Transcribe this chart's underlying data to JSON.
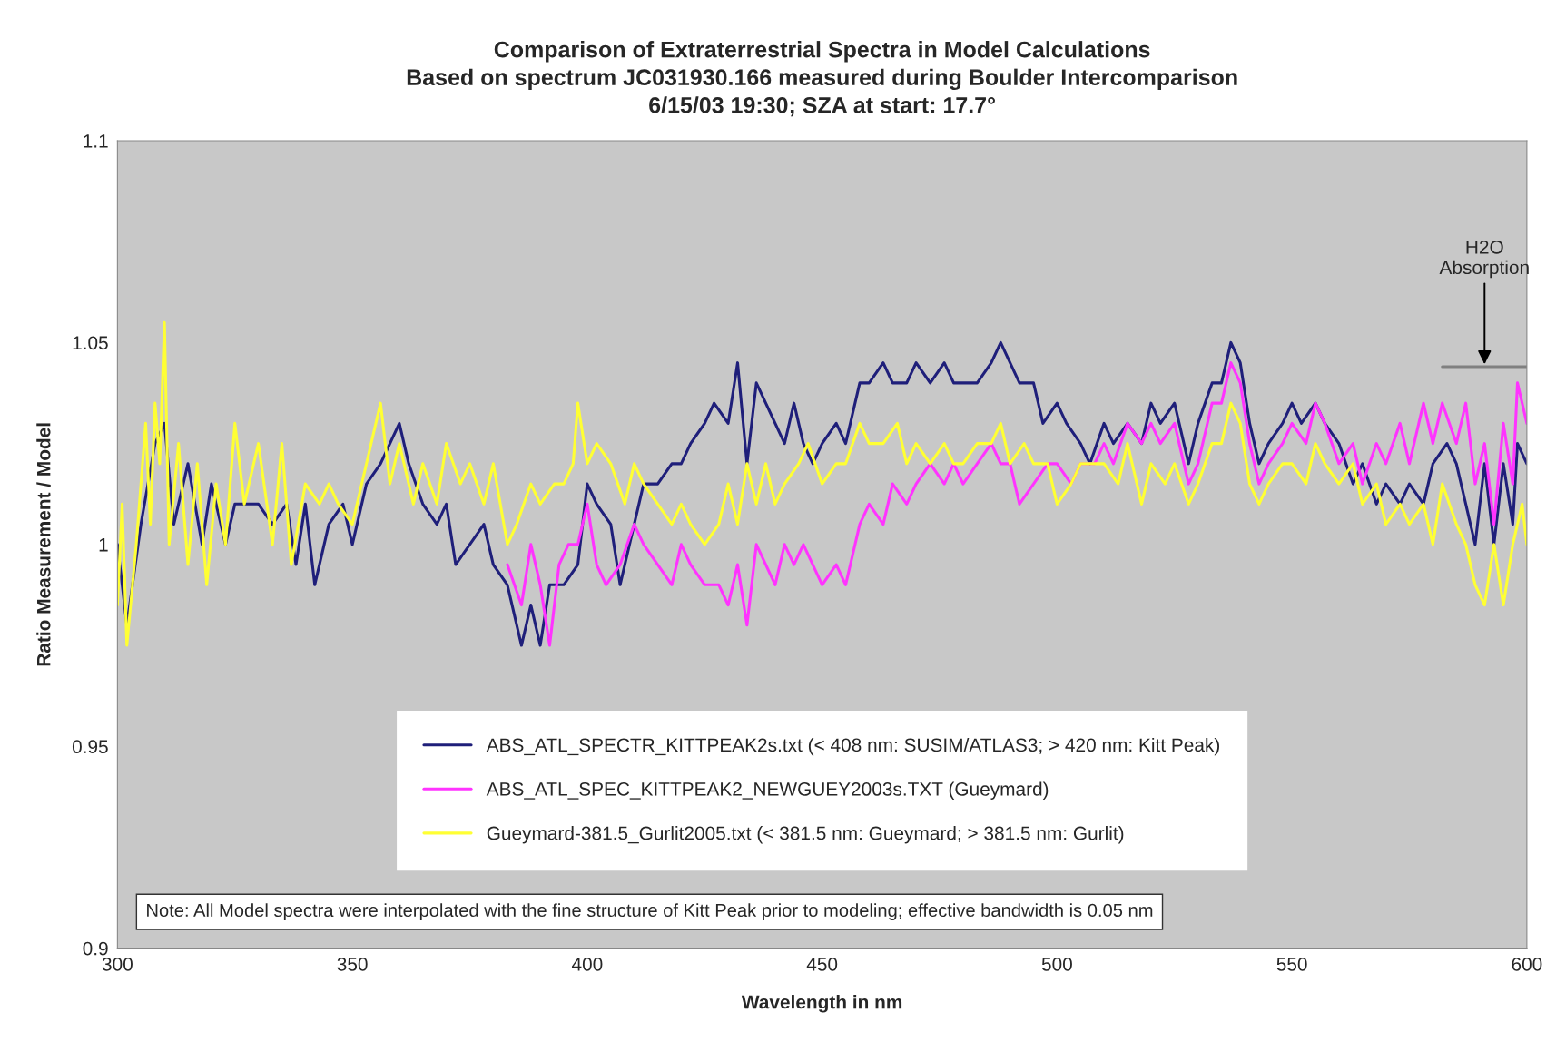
{
  "chart_data": {
    "type": "line",
    "title": "Comparison of Extraterrestrial Spectra in Model Calculations\nBased on spectrum JC031930.166 measured during Boulder Intercomparison\n6/15/03 19:30; SZA at start: 17.7°",
    "xlabel": "Wavelength in nm",
    "ylabel": "Ratio Measurement / Model",
    "xlim": [
      300,
      600
    ],
    "xticks": [
      300,
      350,
      400,
      450,
      500,
      550,
      600
    ],
    "ylim": [
      0.9,
      1.1
    ],
    "yticks": [
      0.9,
      0.95,
      1,
      1.05,
      1.1
    ],
    "legend": "bottom",
    "annotations": [
      {
        "text": "H2O\nAbsorption",
        "x": 591,
        "y": 1.044
      },
      "Note: All Model spectra were interpolated with the fine structure of Kitt Peak prior to modeling; effective bandwidth is 0.05 nm"
    ],
    "series": [
      {
        "name": "ABS_ATL_SPECTR_KITTPEAK2s.txt (< 408 nm: SUSIM/ATLAS3; > 420 nm: Kitt Peak)",
        "color": "#1f1f7a",
        "x": [
          300,
          302,
          305,
          308,
          310,
          312,
          315,
          318,
          320,
          323,
          325,
          330,
          333,
          336,
          338,
          340,
          342,
          345,
          348,
          350,
          353,
          356,
          358,
          360,
          362,
          365,
          368,
          370,
          372,
          375,
          378,
          380,
          383,
          386,
          388,
          390,
          392,
          395,
          398,
          400,
          402,
          405,
          407,
          410,
          412,
          415,
          418,
          420,
          422,
          425,
          427,
          430,
          432,
          434,
          436,
          438,
          440,
          442,
          444,
          446,
          448,
          450,
          453,
          455,
          458,
          460,
          463,
          465,
          468,
          470,
          473,
          476,
          478,
          480,
          483,
          486,
          488,
          490,
          492,
          495,
          497,
          500,
          502,
          505,
          507,
          510,
          512,
          515,
          518,
          520,
          522,
          525,
          528,
          530,
          533,
          535,
          537,
          539,
          541,
          543,
          545,
          548,
          550,
          552,
          555,
          557,
          560,
          563,
          565,
          568,
          570,
          573,
          575,
          578,
          580,
          583,
          585,
          587,
          589,
          591,
          593,
          595,
          597,
          598,
          600
        ],
        "values": [
          1.0,
          0.98,
          1.005,
          1.025,
          1.03,
          1.005,
          1.02,
          1.0,
          1.015,
          1.0,
          1.01,
          1.01,
          1.005,
          1.01,
          0.995,
          1.01,
          0.99,
          1.005,
          1.01,
          1.0,
          1.015,
          1.02,
          1.025,
          1.03,
          1.02,
          1.01,
          1.005,
          1.01,
          0.995,
          1.0,
          1.005,
          0.995,
          0.99,
          0.975,
          0.985,
          0.975,
          0.99,
          0.99,
          0.995,
          1.015,
          1.01,
          1.005,
          0.99,
          1.005,
          1.015,
          1.015,
          1.02,
          1.02,
          1.025,
          1.03,
          1.035,
          1.03,
          1.045,
          1.02,
          1.04,
          1.035,
          1.03,
          1.025,
          1.035,
          1.025,
          1.02,
          1.025,
          1.03,
          1.025,
          1.04,
          1.04,
          1.045,
          1.04,
          1.04,
          1.045,
          1.04,
          1.045,
          1.04,
          1.04,
          1.04,
          1.045,
          1.05,
          1.045,
          1.04,
          1.04,
          1.03,
          1.035,
          1.03,
          1.025,
          1.02,
          1.03,
          1.025,
          1.03,
          1.025,
          1.035,
          1.03,
          1.035,
          1.02,
          1.03,
          1.04,
          1.04,
          1.05,
          1.045,
          1.03,
          1.02,
          1.025,
          1.03,
          1.035,
          1.03,
          1.035,
          1.03,
          1.025,
          1.015,
          1.02,
          1.01,
          1.015,
          1.01,
          1.015,
          1.01,
          1.02,
          1.025,
          1.02,
          1.01,
          1.0,
          1.02,
          1.0,
          1.02,
          1.005,
          1.025,
          1.02
        ]
      },
      {
        "name": "ABS_ATL_SPEC_KITTPEAK2_NEWGUEY2003s.TXT (Gueymard)",
        "color": "#ff33ff",
        "x": [
          383,
          386,
          388,
          390,
          392,
          394,
          396,
          398,
          400,
          402,
          404,
          407,
          410,
          412,
          415,
          418,
          420,
          422,
          425,
          428,
          430,
          432,
          434,
          436,
          438,
          440,
          442,
          444,
          446,
          448,
          450,
          453,
          455,
          458,
          460,
          463,
          465,
          468,
          470,
          473,
          476,
          478,
          480,
          483,
          486,
          488,
          490,
          492,
          495,
          498,
          500,
          503,
          505,
          508,
          510,
          512,
          515,
          518,
          520,
          522,
          525,
          528,
          530,
          533,
          535,
          537,
          539,
          541,
          543,
          545,
          548,
          550,
          553,
          555,
          557,
          560,
          563,
          565,
          568,
          570,
          573,
          575,
          578,
          580,
          582,
          585,
          587,
          589,
          591,
          593,
          595,
          597,
          598,
          600
        ],
        "values": [
          0.995,
          0.985,
          1.0,
          0.99,
          0.975,
          0.995,
          1.0,
          1.0,
          1.01,
          0.995,
          0.99,
          0.995,
          1.005,
          1.0,
          0.995,
          0.99,
          1.0,
          0.995,
          0.99,
          0.99,
          0.985,
          0.995,
          0.98,
          1.0,
          0.995,
          0.99,
          1.0,
          0.995,
          1.0,
          0.995,
          0.99,
          0.995,
          0.99,
          1.005,
          1.01,
          1.005,
          1.015,
          1.01,
          1.015,
          1.02,
          1.015,
          1.02,
          1.015,
          1.02,
          1.025,
          1.02,
          1.02,
          1.01,
          1.015,
          1.02,
          1.02,
          1.015,
          1.02,
          1.02,
          1.025,
          1.02,
          1.03,
          1.025,
          1.03,
          1.025,
          1.03,
          1.015,
          1.02,
          1.035,
          1.035,
          1.045,
          1.04,
          1.025,
          1.015,
          1.02,
          1.025,
          1.03,
          1.025,
          1.035,
          1.03,
          1.02,
          1.025,
          1.015,
          1.025,
          1.02,
          1.03,
          1.02,
          1.035,
          1.025,
          1.035,
          1.025,
          1.035,
          1.015,
          1.025,
          1.005,
          1.03,
          1.015,
          1.04,
          1.03
        ]
      },
      {
        "name": "Gueymard-381.5_Gurlit2005.txt (< 381.5 nm: Gueymard; > 381.5 nm: Gurlit)",
        "color": "#ffff33",
        "x": [
          300,
          301,
          302,
          304,
          306,
          307,
          308,
          309,
          310,
          311,
          313,
          315,
          317,
          319,
          321,
          323,
          325,
          327,
          330,
          333,
          335,
          337,
          340,
          343,
          345,
          347,
          350,
          353,
          356,
          358,
          360,
          363,
          365,
          368,
          370,
          373,
          375,
          378,
          380,
          383,
          385,
          388,
          390,
          393,
          395,
          397,
          398,
          400,
          402,
          405,
          408,
          410,
          412,
          415,
          418,
          420,
          422,
          425,
          428,
          430,
          432,
          434,
          436,
          438,
          440,
          442,
          445,
          447,
          450,
          453,
          455,
          458,
          460,
          463,
          466,
          468,
          470,
          473,
          476,
          478,
          480,
          483,
          486,
          488,
          490,
          493,
          495,
          498,
          500,
          503,
          505,
          508,
          510,
          513,
          515,
          518,
          520,
          523,
          525,
          528,
          530,
          533,
          535,
          537,
          539,
          541,
          543,
          545,
          548,
          550,
          553,
          555,
          557,
          560,
          563,
          565,
          568,
          570,
          573,
          575,
          578,
          580,
          582,
          585,
          587,
          589,
          591,
          593,
          595,
          597,
          599,
          600
        ],
        "values": [
          0.985,
          1.01,
          0.975,
          1.0,
          1.03,
          1.005,
          1.035,
          1.02,
          1.055,
          1.0,
          1.025,
          0.995,
          1.02,
          0.99,
          1.015,
          1.0,
          1.03,
          1.01,
          1.025,
          1.0,
          1.025,
          0.995,
          1.015,
          1.01,
          1.015,
          1.01,
          1.005,
          1.02,
          1.035,
          1.015,
          1.025,
          1.01,
          1.02,
          1.01,
          1.025,
          1.015,
          1.02,
          1.01,
          1.02,
          1.0,
          1.005,
          1.015,
          1.01,
          1.015,
          1.015,
          1.02,
          1.035,
          1.02,
          1.025,
          1.02,
          1.01,
          1.02,
          1.015,
          1.01,
          1.005,
          1.01,
          1.005,
          1.0,
          1.005,
          1.015,
          1.005,
          1.02,
          1.01,
          1.02,
          1.01,
          1.015,
          1.02,
          1.025,
          1.015,
          1.02,
          1.02,
          1.03,
          1.025,
          1.025,
          1.03,
          1.02,
          1.025,
          1.02,
          1.025,
          1.02,
          1.02,
          1.025,
          1.025,
          1.03,
          1.02,
          1.025,
          1.02,
          1.02,
          1.01,
          1.015,
          1.02,
          1.02,
          1.02,
          1.015,
          1.025,
          1.01,
          1.02,
          1.015,
          1.02,
          1.01,
          1.015,
          1.025,
          1.025,
          1.035,
          1.03,
          1.015,
          1.01,
          1.015,
          1.02,
          1.02,
          1.015,
          1.025,
          1.02,
          1.015,
          1.02,
          1.01,
          1.015,
          1.005,
          1.01,
          1.005,
          1.01,
          1.0,
          1.015,
          1.005,
          1.0,
          0.99,
          0.985,
          1.0,
          0.985,
          1.0,
          1.01,
          1.0
        ]
      },
      {
        "color": "#808080",
        "x": [
          582,
          600
        ],
        "values": [
          1.044,
          1.044
        ]
      }
    ]
  }
}
